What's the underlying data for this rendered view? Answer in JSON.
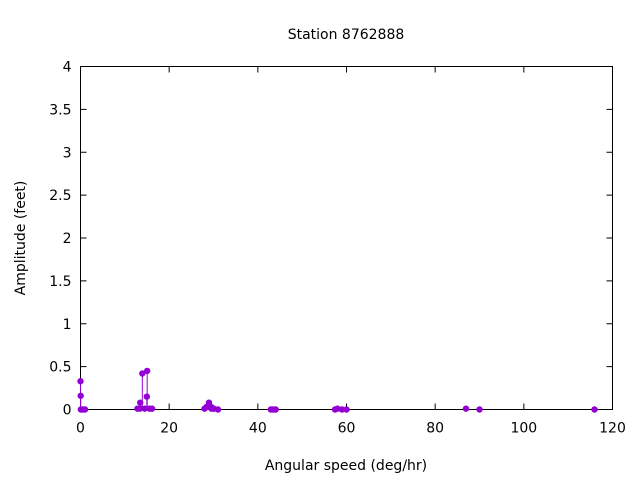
{
  "chart_data": {
    "type": "scatter",
    "style": "impulses-with-points",
    "title": "Station 8762888",
    "xlabel": "Angular speed (deg/hr)",
    "ylabel": "Amplitude (feet)",
    "xlim": [
      0,
      120
    ],
    "ylim": [
      0,
      4
    ],
    "x_ticks": [
      0,
      20,
      40,
      60,
      80,
      100,
      120
    ],
    "y_ticks": [
      0,
      0.5,
      1,
      1.5,
      2,
      2.5,
      3,
      3.5,
      4
    ],
    "x_tick_labels": [
      "0",
      "20",
      "40",
      "60",
      "80",
      "100",
      "120"
    ],
    "y_tick_labels": [
      "0",
      "0.5",
      "1",
      "1.5",
      "2",
      "2.5",
      "3",
      "3.5",
      "4"
    ],
    "grid": false,
    "color": "#9400d3",
    "points": [
      {
        "x": 0.0,
        "y": 0.33
      },
      {
        "x": 0.04,
        "y": 0.16
      },
      {
        "x": 0.08,
        "y": 0.0
      },
      {
        "x": 0.54,
        "y": 0.0
      },
      {
        "x": 1.02,
        "y": 0.0
      },
      {
        "x": 12.85,
        "y": 0.01
      },
      {
        "x": 13.4,
        "y": 0.01
      },
      {
        "x": 13.47,
        "y": 0.08
      },
      {
        "x": 13.94,
        "y": 0.42
      },
      {
        "x": 14.49,
        "y": 0.01
      },
      {
        "x": 14.96,
        "y": 0.15
      },
      {
        "x": 15.04,
        "y": 0.45
      },
      {
        "x": 15.59,
        "y": 0.01
      },
      {
        "x": 16.14,
        "y": 0.01
      },
      {
        "x": 27.97,
        "y": 0.01
      },
      {
        "x": 28.44,
        "y": 0.03
      },
      {
        "x": 28.51,
        "y": 0.03
      },
      {
        "x": 28.98,
        "y": 0.08
      },
      {
        "x": 29.46,
        "y": 0.03
      },
      {
        "x": 29.53,
        "y": 0.01
      },
      {
        "x": 30.0,
        "y": 0.01
      },
      {
        "x": 30.08,
        "y": 0.01
      },
      {
        "x": 31.02,
        "y": 0.0
      },
      {
        "x": 42.93,
        "y": 0.0
      },
      {
        "x": 43.48,
        "y": 0.0
      },
      {
        "x": 44.03,
        "y": 0.0
      },
      {
        "x": 57.42,
        "y": 0.0
      },
      {
        "x": 57.97,
        "y": 0.01
      },
      {
        "x": 58.98,
        "y": 0.0
      },
      {
        "x": 60.0,
        "y": 0.0
      },
      {
        "x": 86.95,
        "y": 0.01
      },
      {
        "x": 90.0,
        "y": 0.0
      },
      {
        "x": 115.94,
        "y": 0.0
      }
    ]
  }
}
